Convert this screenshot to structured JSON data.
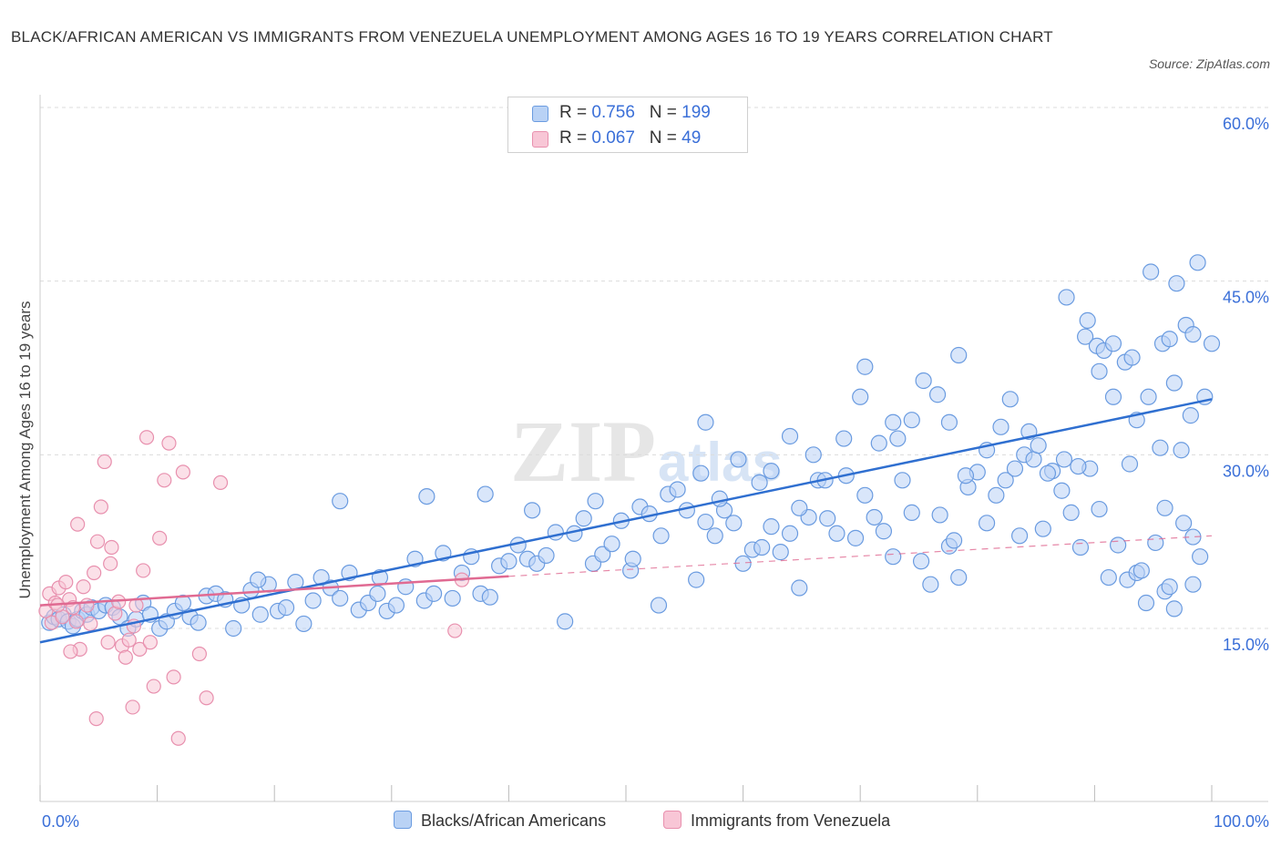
{
  "title": "BLACK/AFRICAN AMERICAN VS IMMIGRANTS FROM VENEZUELA UNEMPLOYMENT AMONG AGES 16 TO 19 YEARS CORRELATION CHART",
  "source": "Source: ZipAtlas.com",
  "watermark": {
    "zip": "ZIP",
    "atlas": "atlas"
  },
  "legend": {
    "rows": [
      {
        "r_label": "R = ",
        "r": "0.756",
        "n_label": "N = ",
        "n": "199"
      },
      {
        "r_label": "R = ",
        "r": "0.067",
        "n_label": "N = ",
        "n": "49"
      }
    ]
  },
  "colors": {
    "blue_fill": "#b9d2f5",
    "blue_stroke": "#6a9be0",
    "blue_line": "#2f6fd0",
    "pink_fill": "#f8c6d6",
    "pink_stroke": "#e890ae",
    "pink_line": "#e06a92",
    "grid": "#dcdcdc",
    "axis_text": "#3a6fd8"
  },
  "chart_data": {
    "type": "scatter",
    "title": "BLACK/AFRICAN AMERICAN VS IMMIGRANTS FROM VENEZUELA UNEMPLOYMENT AMONG AGES 16 TO 19 YEARS CORRELATION CHART",
    "xlabel": "",
    "ylabel": "Unemployment Among Ages 16 to 19 years",
    "xlim": [
      0,
      100
    ],
    "ylim": [
      0,
      60
    ],
    "x_tick_labels": [
      "0.0%",
      "100.0%"
    ],
    "y_ticks": [
      15,
      30,
      45,
      60
    ],
    "y_tick_labels": [
      "15.0%",
      "30.0%",
      "45.0%",
      "60.0%"
    ],
    "grid": true,
    "legend_position": "top-center",
    "series": [
      {
        "name": "Blacks/African Americans",
        "R": 0.756,
        "N": 199,
        "trend": {
          "x": [
            0,
            100
          ],
          "y": [
            13.8,
            34.8
          ],
          "style": "solid"
        },
        "points": [
          [
            0.8,
            15.5
          ],
          [
            1.2,
            16
          ],
          [
            1.6,
            15.8
          ],
          [
            2,
            16.2
          ],
          [
            2.4,
            15.6
          ],
          [
            2.8,
            15.2
          ],
          [
            3.2,
            15.8
          ],
          [
            3.6,
            16.5
          ],
          [
            4,
            16.2
          ],
          [
            4.4,
            16.8
          ],
          [
            5,
            16.5
          ],
          [
            5.6,
            17
          ],
          [
            6.2,
            16.8
          ],
          [
            6.8,
            16
          ],
          [
            7.5,
            15
          ],
          [
            8.2,
            15.8
          ],
          [
            8.8,
            17.2
          ],
          [
            9.4,
            16.2
          ],
          [
            10.2,
            15
          ],
          [
            10.8,
            15.6
          ],
          [
            11.5,
            16.5
          ],
          [
            12.2,
            17.2
          ],
          [
            12.8,
            16
          ],
          [
            13.5,
            15.5
          ],
          [
            14.2,
            17.8
          ],
          [
            15,
            18
          ],
          [
            15.8,
            17.5
          ],
          [
            16.5,
            15
          ],
          [
            17.2,
            17
          ],
          [
            18,
            18.3
          ],
          [
            18.8,
            16.2
          ],
          [
            19.5,
            18.8
          ],
          [
            20.3,
            16.5
          ],
          [
            21,
            16.8
          ],
          [
            21.8,
            19
          ],
          [
            22.5,
            15.4
          ],
          [
            23.3,
            17.4
          ],
          [
            24,
            19.4
          ],
          [
            24.8,
            18.5
          ],
          [
            25.6,
            17.6
          ],
          [
            26.4,
            19.8
          ],
          [
            27.2,
            16.6
          ],
          [
            28,
            17.2
          ],
          [
            28.8,
            18
          ],
          [
            29.6,
            16.5
          ],
          [
            30.4,
            17
          ],
          [
            31.2,
            18.6
          ],
          [
            32,
            21
          ],
          [
            32.8,
            17.4
          ],
          [
            33.6,
            18
          ],
          [
            34.4,
            21.5
          ],
          [
            35.2,
            17.6
          ],
          [
            36,
            19.8
          ],
          [
            36.8,
            21.2
          ],
          [
            37.6,
            18
          ],
          [
            38.4,
            17.7
          ],
          [
            39.2,
            20.4
          ],
          [
            40,
            20.8
          ],
          [
            40.8,
            22.2
          ],
          [
            41.6,
            21
          ],
          [
            42.4,
            20.6
          ],
          [
            43.2,
            21.3
          ],
          [
            44,
            23.3
          ],
          [
            44.8,
            15.6
          ],
          [
            45.6,
            23.2
          ],
          [
            46.4,
            24.5
          ],
          [
            47.2,
            20.6
          ],
          [
            48,
            21.4
          ],
          [
            48.8,
            22.3
          ],
          [
            49.6,
            24.3
          ],
          [
            50.4,
            20
          ],
          [
            51.2,
            25.5
          ],
          [
            52,
            24.9
          ],
          [
            52.8,
            17
          ],
          [
            53.6,
            26.6
          ],
          [
            54.4,
            27
          ],
          [
            55.2,
            25.2
          ],
          [
            56,
            19.2
          ],
          [
            56.8,
            24.2
          ],
          [
            57.6,
            23
          ],
          [
            58.4,
            25.2
          ],
          [
            59.2,
            24.1
          ],
          [
            60,
            20.6
          ],
          [
            60.8,
            21.8
          ],
          [
            61.6,
            22
          ],
          [
            62.4,
            23.8
          ],
          [
            63.2,
            21.6
          ],
          [
            64,
            23.2
          ],
          [
            64.8,
            18.5
          ],
          [
            65.6,
            24.6
          ],
          [
            66.4,
            27.8
          ],
          [
            67.2,
            24.5
          ],
          [
            68,
            23.2
          ],
          [
            68.8,
            28.2
          ],
          [
            69.6,
            22.8
          ],
          [
            70.4,
            26.5
          ],
          [
            71.2,
            24.6
          ],
          [
            72,
            23.4
          ],
          [
            72.8,
            21.2
          ],
          [
            73.6,
            27.8
          ],
          [
            74.4,
            25
          ],
          [
            75.2,
            20.8
          ],
          [
            76,
            18.8
          ],
          [
            76.8,
            24.8
          ],
          [
            77.6,
            22.1
          ],
          [
            78.4,
            19.4
          ],
          [
            79.2,
            27.2
          ],
          [
            80,
            28.5
          ],
          [
            80.8,
            24.1
          ],
          [
            81.6,
            26.5
          ],
          [
            82.4,
            27.8
          ],
          [
            83.2,
            28.8
          ],
          [
            84,
            30
          ],
          [
            84.8,
            29.6
          ],
          [
            85.6,
            23.6
          ],
          [
            86.4,
            28.6
          ],
          [
            87.2,
            26.9
          ],
          [
            88,
            25
          ],
          [
            88.8,
            22
          ],
          [
            89.6,
            28.8
          ],
          [
            90.4,
            25.3
          ],
          [
            91.2,
            19.4
          ],
          [
            92,
            22.2
          ],
          [
            92.8,
            19.2
          ],
          [
            93.6,
            19.8
          ],
          [
            94.4,
            17.2
          ],
          [
            95.2,
            22.4
          ],
          [
            96,
            18.2
          ],
          [
            96.8,
            16.7
          ],
          [
            97.6,
            24.1
          ],
          [
            98.4,
            18.8
          ],
          [
            99,
            21.2
          ],
          [
            18.6,
            19.2
          ],
          [
            25.6,
            26
          ],
          [
            29,
            19.4
          ],
          [
            33,
            26.4
          ],
          [
            38,
            26.6
          ],
          [
            42,
            25.2
          ],
          [
            47.4,
            26
          ],
          [
            50.6,
            21
          ],
          [
            53,
            23
          ],
          [
            56.4,
            28.4
          ],
          [
            58,
            26.2
          ],
          [
            59.6,
            29.6
          ],
          [
            62.4,
            28.6
          ],
          [
            64,
            31.6
          ],
          [
            66,
            30
          ],
          [
            67,
            27.8
          ],
          [
            68.6,
            31.4
          ],
          [
            70,
            35
          ],
          [
            70.4,
            37.6
          ],
          [
            71.6,
            31
          ],
          [
            72.8,
            32.8
          ],
          [
            73.2,
            31.4
          ],
          [
            74.4,
            33
          ],
          [
            75.4,
            36.4
          ],
          [
            76.6,
            35.2
          ],
          [
            77.6,
            32.8
          ],
          [
            78.4,
            38.6
          ],
          [
            79,
            28.2
          ],
          [
            80.8,
            30.4
          ],
          [
            82,
            32.4
          ],
          [
            82.8,
            34.8
          ],
          [
            84.4,
            32
          ],
          [
            85.2,
            30.8
          ],
          [
            86,
            28.4
          ],
          [
            87.4,
            29.6
          ],
          [
            88.6,
            29
          ],
          [
            89.2,
            40.2
          ],
          [
            90.2,
            39.4
          ],
          [
            90.8,
            39
          ],
          [
            91.6,
            35
          ],
          [
            93,
            29.2
          ],
          [
            93.6,
            33
          ],
          [
            94.6,
            35
          ],
          [
            95.8,
            39.6
          ],
          [
            96.4,
            40
          ],
          [
            96.8,
            36.2
          ],
          [
            97.4,
            30.4
          ],
          [
            98.2,
            33.4
          ],
          [
            98.8,
            46.6
          ],
          [
            99.4,
            35
          ],
          [
            100,
            39.6
          ],
          [
            95.6,
            30.6
          ],
          [
            96,
            25.4
          ],
          [
            98.4,
            22.9
          ],
          [
            56.8,
            32.8
          ],
          [
            61.4,
            27.6
          ],
          [
            64.8,
            25.4
          ],
          [
            78,
            22.6
          ],
          [
            83.6,
            23
          ],
          [
            90.4,
            37.2
          ],
          [
            92.6,
            38
          ],
          [
            94,
            20
          ],
          [
            96.4,
            18.6
          ],
          [
            97.8,
            41.2
          ],
          [
            98.4,
            40.4
          ],
          [
            97,
            44.8
          ],
          [
            94.8,
            45.8
          ],
          [
            91.6,
            39.6
          ],
          [
            93.2,
            38.4
          ],
          [
            87.6,
            43.6
          ],
          [
            89.4,
            41.6
          ]
        ]
      },
      {
        "name": "Immigrants from Venezuela",
        "R": 0.067,
        "N": 49,
        "trend": {
          "x": [
            0,
            40
          ],
          "y": [
            17.0,
            19.5
          ],
          "style": "solid",
          "dashed_to": [
            100,
            23.0
          ]
        },
        "points": [
          [
            0.5,
            16.5
          ],
          [
            0.8,
            18
          ],
          [
            1,
            15.5
          ],
          [
            1.3,
            17.2
          ],
          [
            1.6,
            18.5
          ],
          [
            1.9,
            16
          ],
          [
            2.2,
            19
          ],
          [
            2.5,
            17.5
          ],
          [
            2.8,
            16.8
          ],
          [
            3.1,
            15.6
          ],
          [
            3.4,
            13.2
          ],
          [
            3.7,
            18.6
          ],
          [
            4,
            17
          ],
          [
            4.3,
            15.4
          ],
          [
            4.6,
            19.8
          ],
          [
            4.9,
            22.5
          ],
          [
            5.2,
            25.5
          ],
          [
            5.5,
            29.4
          ],
          [
            5.8,
            13.8
          ],
          [
            6.1,
            22
          ],
          [
            6.4,
            16.3
          ],
          [
            6.7,
            17.3
          ],
          [
            7,
            13.5
          ],
          [
            7.3,
            12.5
          ],
          [
            7.6,
            14
          ],
          [
            7.9,
            8.2
          ],
          [
            8.2,
            17
          ],
          [
            8.5,
            13.2
          ],
          [
            8.8,
            20
          ],
          [
            9.1,
            31.5
          ],
          [
            9.4,
            13.8
          ],
          [
            9.7,
            10
          ],
          [
            10.2,
            22.8
          ],
          [
            10.6,
            27.8
          ],
          [
            11,
            31
          ],
          [
            11.4,
            10.8
          ],
          [
            11.8,
            5.5
          ],
          [
            12.2,
            28.5
          ],
          [
            13.6,
            12.8
          ],
          [
            14.2,
            9
          ],
          [
            15.4,
            27.6
          ],
          [
            4.8,
            7.2
          ],
          [
            3.2,
            24
          ],
          [
            2.6,
            13
          ],
          [
            1.5,
            17
          ],
          [
            6,
            20.6
          ],
          [
            8,
            15.2
          ],
          [
            36,
            19.2
          ],
          [
            35.4,
            14.8
          ]
        ]
      }
    ]
  },
  "bottom_legend": [
    {
      "label": "Blacks/African Americans"
    },
    {
      "label": "Immigrants from Venezuela"
    }
  ]
}
